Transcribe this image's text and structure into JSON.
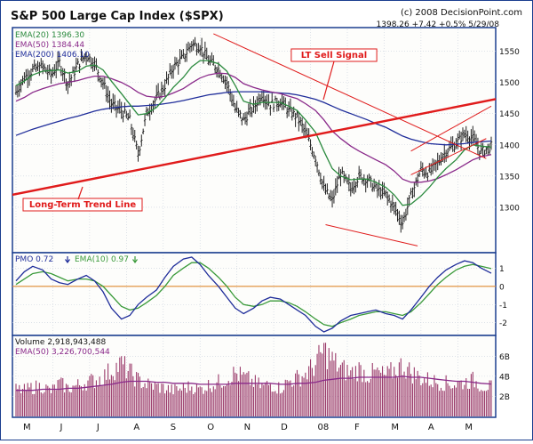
{
  "header": {
    "title": "S&P 500 Large Cap Index ($SPX)",
    "copyright": "(c) 2008 DecisionPoint.com",
    "quote": "1398.26  +7.42  +0.5%   5/29/08"
  },
  "colors": {
    "frame_blue": "#1b3e8f",
    "panel_bg": "#fdfdfb",
    "grid": "#c9d1dd",
    "price_bar": "#222222",
    "ema20": "#2b8a3e",
    "ema50": "#8a2a8a",
    "ema200": "#1f2d9a",
    "trend_red": "#e01b1b",
    "volume_bar": "#9a3a6a",
    "pmo_line": "#1f2d9a",
    "pmo_signal": "#3a9a3a",
    "zero_line": "#e08a30"
  },
  "chart_data": [
    {
      "type": "line",
      "panel": "price",
      "title": "S&P 500 Large Cap Index ($SPX)",
      "legend": [
        {
          "label": "EMA(20)",
          "value": "1396.30"
        },
        {
          "label": "EMA(50)",
          "value": "1384.44"
        },
        {
          "label": "EMA(200)",
          "value": "1406.10"
        }
      ],
      "ylim": [
        1230,
        1585
      ],
      "yticks": [
        1300,
        1350,
        1400,
        1450,
        1500,
        1550
      ],
      "xticks": [
        "M",
        "J",
        "J",
        "A",
        "S",
        "O",
        "N",
        "D",
        "08",
        "F",
        "M",
        "A",
        "M"
      ],
      "x": [
        0,
        5,
        10,
        16,
        21,
        26,
        31,
        37,
        42,
        47,
        52,
        57,
        63,
        68,
        73,
        78,
        84,
        89,
        94,
        100,
        105,
        110,
        115,
        121,
        126,
        131,
        136,
        142,
        147,
        152,
        158,
        163,
        168,
        173,
        179,
        184,
        189,
        194,
        200,
        205,
        210,
        215,
        221,
        226,
        231,
        236,
        242,
        247,
        252,
        257,
        263,
        268,
        273,
        278,
        284
      ],
      "series": [
        {
          "name": "S&P 500 Large Cap Index ($SPX)",
          "values": [
            1485,
            1508,
            1520,
            1525,
            1512,
            1532,
            1498,
            1528,
            1545,
            1530,
            1500,
            1465,
            1455,
            1440,
            1385,
            1450,
            1475,
            1495,
            1525,
            1540,
            1562,
            1558,
            1535,
            1522,
            1500,
            1458,
            1440,
            1460,
            1482,
            1465,
            1470,
            1455,
            1445,
            1420,
            1380,
            1330,
            1310,
            1355,
            1330,
            1350,
            1345,
            1330,
            1320,
            1300,
            1275,
            1318,
            1360,
            1355,
            1372,
            1390,
            1402,
            1418,
            1410,
            1388,
            1398
          ]
        },
        {
          "name": "EMA(20)",
          "values": [
            1495,
            1502,
            1512,
            1518,
            1519,
            1520,
            1515,
            1518,
            1526,
            1528,
            1520,
            1502,
            1482,
            1465,
            1448,
            1450,
            1460,
            1475,
            1492,
            1508,
            1525,
            1535,
            1535,
            1530,
            1518,
            1495,
            1470,
            1465,
            1468,
            1468,
            1468,
            1462,
            1455,
            1440,
            1420,
            1390,
            1362,
            1350,
            1344,
            1345,
            1345,
            1340,
            1332,
            1320,
            1303,
            1305,
            1318,
            1332,
            1348,
            1362,
            1376,
            1392,
            1400,
            1398,
            1396.3
          ]
        },
        {
          "name": "EMA(50)",
          "values": [
            1470,
            1476,
            1484,
            1490,
            1494,
            1498,
            1500,
            1503,
            1507,
            1510,
            1510,
            1506,
            1500,
            1493,
            1484,
            1478,
            1476,
            1478,
            1483,
            1490,
            1499,
            1507,
            1512,
            1515,
            1514,
            1508,
            1498,
            1492,
            1488,
            1485,
            1482,
            1478,
            1474,
            1466,
            1455,
            1440,
            1422,
            1410,
            1398,
            1390,
            1383,
            1376,
            1368,
            1358,
            1345,
            1340,
            1340,
            1342,
            1346,
            1352,
            1360,
            1368,
            1376,
            1381,
            1384.44
          ]
        },
        {
          "name": "EMA(200)",
          "values": [
            1415,
            1420,
            1425,
            1430,
            1434,
            1438,
            1442,
            1446,
            1450,
            1454,
            1457,
            1459,
            1461,
            1462,
            1462,
            1463,
            1464,
            1466,
            1468,
            1471,
            1474,
            1477,
            1480,
            1482,
            1484,
            1485,
            1485,
            1485,
            1485,
            1484,
            1483,
            1482,
            1480,
            1477,
            1473,
            1468,
            1462,
            1456,
            1450,
            1445,
            1440,
            1434,
            1428,
            1421,
            1414,
            1409,
            1405,
            1402,
            1401,
            1400,
            1401,
            1402,
            1404,
            1405,
            1406.1
          ]
        }
      ],
      "annotations": [
        {
          "label": "LT Sell Signal",
          "color": "#e01b1b"
        },
        {
          "label": "Long-Term Trend Line",
          "color": "#e01b1b"
        }
      ]
    },
    {
      "type": "line",
      "panel": "pmo",
      "legend": [
        {
          "label": "PMO",
          "value": "0.72",
          "direction": "down"
        },
        {
          "label": "EMA(10)",
          "value": "0.97",
          "direction": "down"
        }
      ],
      "ylim": [
        -2.6,
        1.7
      ],
      "yticks": [
        -2,
        -1,
        0,
        1
      ],
      "x": [
        0,
        5,
        10,
        16,
        21,
        26,
        31,
        37,
        42,
        47,
        52,
        57,
        63,
        68,
        73,
        78,
        84,
        89,
        94,
        100,
        105,
        110,
        115,
        121,
        126,
        131,
        136,
        142,
        147,
        152,
        158,
        163,
        168,
        173,
        179,
        184,
        189,
        194,
        200,
        205,
        210,
        215,
        221,
        226,
        231,
        236,
        242,
        247,
        252,
        257,
        263,
        268,
        273,
        278,
        284
      ],
      "series": [
        {
          "name": "PMO",
          "values": [
            0.3,
            0.8,
            1.1,
            0.9,
            0.4,
            0.2,
            0.1,
            0.4,
            0.6,
            0.3,
            -0.3,
            -1.2,
            -1.8,
            -1.6,
            -1.0,
            -0.6,
            -0.2,
            0.5,
            1.1,
            1.5,
            1.6,
            1.2,
            0.6,
            0.0,
            -0.6,
            -1.2,
            -1.5,
            -1.2,
            -0.8,
            -0.6,
            -0.7,
            -1.0,
            -1.3,
            -1.6,
            -2.2,
            -2.5,
            -2.3,
            -1.9,
            -1.6,
            -1.5,
            -1.4,
            -1.3,
            -1.5,
            -1.6,
            -1.8,
            -1.3,
            -0.6,
            0.0,
            0.5,
            0.9,
            1.2,
            1.4,
            1.3,
            1.0,
            0.72
          ]
        },
        {
          "name": "EMA(10)",
          "values": [
            0.1,
            0.4,
            0.7,
            0.8,
            0.7,
            0.5,
            0.3,
            0.4,
            0.4,
            0.3,
            0.0,
            -0.5,
            -1.1,
            -1.3,
            -1.2,
            -0.9,
            -0.5,
            0.0,
            0.6,
            1.0,
            1.3,
            1.3,
            1.0,
            0.5,
            0.0,
            -0.6,
            -1.0,
            -1.1,
            -1.0,
            -0.8,
            -0.8,
            -0.9,
            -1.1,
            -1.4,
            -1.8,
            -2.1,
            -2.2,
            -2.0,
            -1.8,
            -1.6,
            -1.5,
            -1.4,
            -1.4,
            -1.5,
            -1.6,
            -1.4,
            -0.9,
            -0.4,
            0.1,
            0.5,
            0.9,
            1.1,
            1.2,
            1.1,
            0.97
          ]
        }
      ]
    },
    {
      "type": "bar",
      "panel": "volume",
      "legend": [
        {
          "label": "Volume",
          "value": "2,918,943,488"
        },
        {
          "label": "EMA(50)",
          "value": "3,226,700,544"
        }
      ],
      "unit": "billions of shares",
      "ylim": [
        0,
        7.8
      ],
      "yticks": [
        2,
        4,
        6
      ],
      "ytick_labels": [
        "2B",
        "4B",
        "6B"
      ],
      "x": [
        0,
        5,
        10,
        16,
        21,
        26,
        31,
        37,
        42,
        47,
        52,
        57,
        63,
        68,
        73,
        78,
        84,
        89,
        94,
        100,
        105,
        110,
        115,
        121,
        126,
        131,
        136,
        142,
        147,
        152,
        158,
        163,
        168,
        173,
        179,
        184,
        189,
        194,
        200,
        205,
        210,
        215,
        221,
        226,
        231,
        236,
        242,
        247,
        252,
        257,
        263,
        268,
        273,
        278,
        284
      ],
      "series": [
        {
          "name": "Volume",
          "values": [
            2.7,
            2.6,
            2.9,
            3.0,
            2.5,
            3.3,
            2.8,
            3.1,
            3.4,
            3.6,
            3.9,
            4.6,
            5.2,
            4.4,
            3.6,
            3.2,
            3.0,
            2.8,
            2.6,
            2.8,
            3.0,
            2.7,
            3.1,
            3.4,
            3.8,
            4.3,
            3.9,
            3.4,
            3.0,
            3.2,
            2.8,
            3.5,
            3.8,
            4.2,
            5.2,
            6.6,
            5.6,
            4.8,
            4.3,
            4.7,
            4.1,
            4.4,
            4.0,
            4.6,
            5.1,
            4.4,
            3.8,
            3.6,
            3.4,
            3.3,
            3.2,
            3.4,
            3.6,
            3.1,
            2.92
          ]
        },
        {
          "name": "EMA(50)",
          "values": [
            2.6,
            2.6,
            2.6,
            2.7,
            2.7,
            2.7,
            2.8,
            2.8,
            2.9,
            3.0,
            3.1,
            3.2,
            3.4,
            3.5,
            3.5,
            3.5,
            3.4,
            3.4,
            3.3,
            3.3,
            3.3,
            3.2,
            3.2,
            3.2,
            3.2,
            3.3,
            3.3,
            3.3,
            3.3,
            3.3,
            3.2,
            3.2,
            3.3,
            3.3,
            3.4,
            3.6,
            3.7,
            3.8,
            3.8,
            3.9,
            3.9,
            3.9,
            3.9,
            3.9,
            4.0,
            3.9,
            3.9,
            3.8,
            3.7,
            3.6,
            3.5,
            3.5,
            3.4,
            3.3,
            3.23
          ]
        }
      ]
    }
  ]
}
